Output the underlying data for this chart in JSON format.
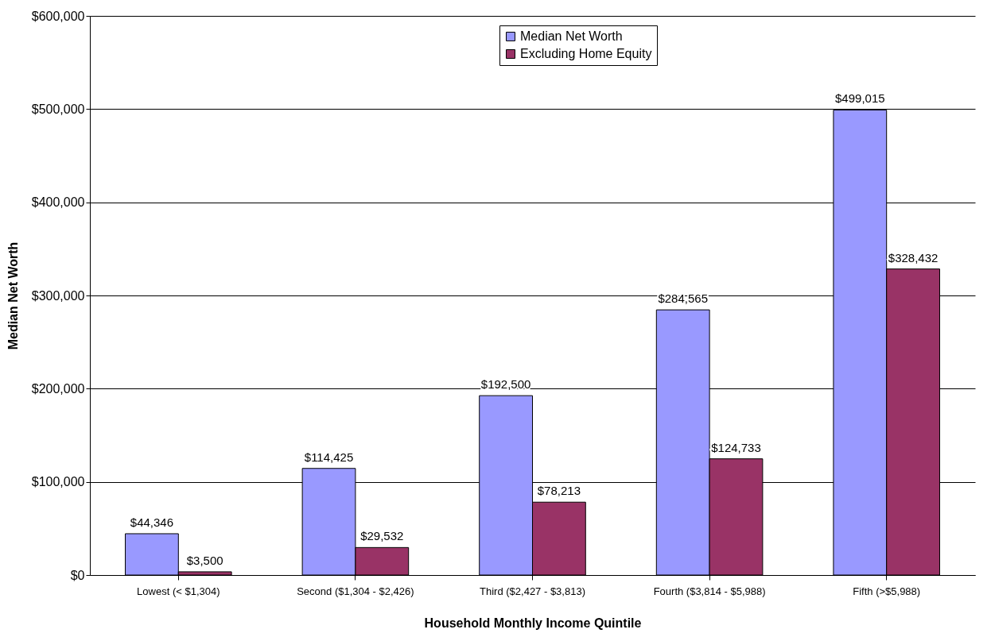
{
  "chart_data": {
    "type": "bar",
    "categories": [
      "Lowest (< $1,304)",
      "Second ($1,304 - $2,426)",
      "Third ($2,427 - $3,813)",
      "Fourth ($3,814 - $5,988)",
      "Fifth (>$5,988)"
    ],
    "series": [
      {
        "name": "Median Net Worth",
        "color": "#9999ff",
        "values": [
          44346,
          114425,
          192500,
          284565,
          499015
        ],
        "value_labels": [
          "$44,346",
          "$114,425",
          "$192,500",
          "$284,565",
          "$499,015"
        ]
      },
      {
        "name": "Excluding Home Equity",
        "color": "#993366",
        "values": [
          3500,
          29532,
          78213,
          124733,
          328432
        ],
        "value_labels": [
          "$3,500",
          "$29,532",
          "$78,213",
          "$124,733",
          "$328,432"
        ]
      }
    ],
    "xlabel": "Household Monthly Income Quintile",
    "ylabel": "Median Net Worth",
    "ylim": [
      0,
      600000
    ],
    "yticks": [
      {
        "value": 0,
        "label": "$0"
      },
      {
        "value": 100000,
        "label": "$100,000"
      },
      {
        "value": 200000,
        "label": "$200,000"
      },
      {
        "value": 300000,
        "label": "$300,000"
      },
      {
        "value": 400000,
        "label": "$400,000"
      },
      {
        "value": 500000,
        "label": "$500,000"
      },
      {
        "value": 600000,
        "label": "$600,000"
      }
    ],
    "grid": "y",
    "legend": "top"
  }
}
